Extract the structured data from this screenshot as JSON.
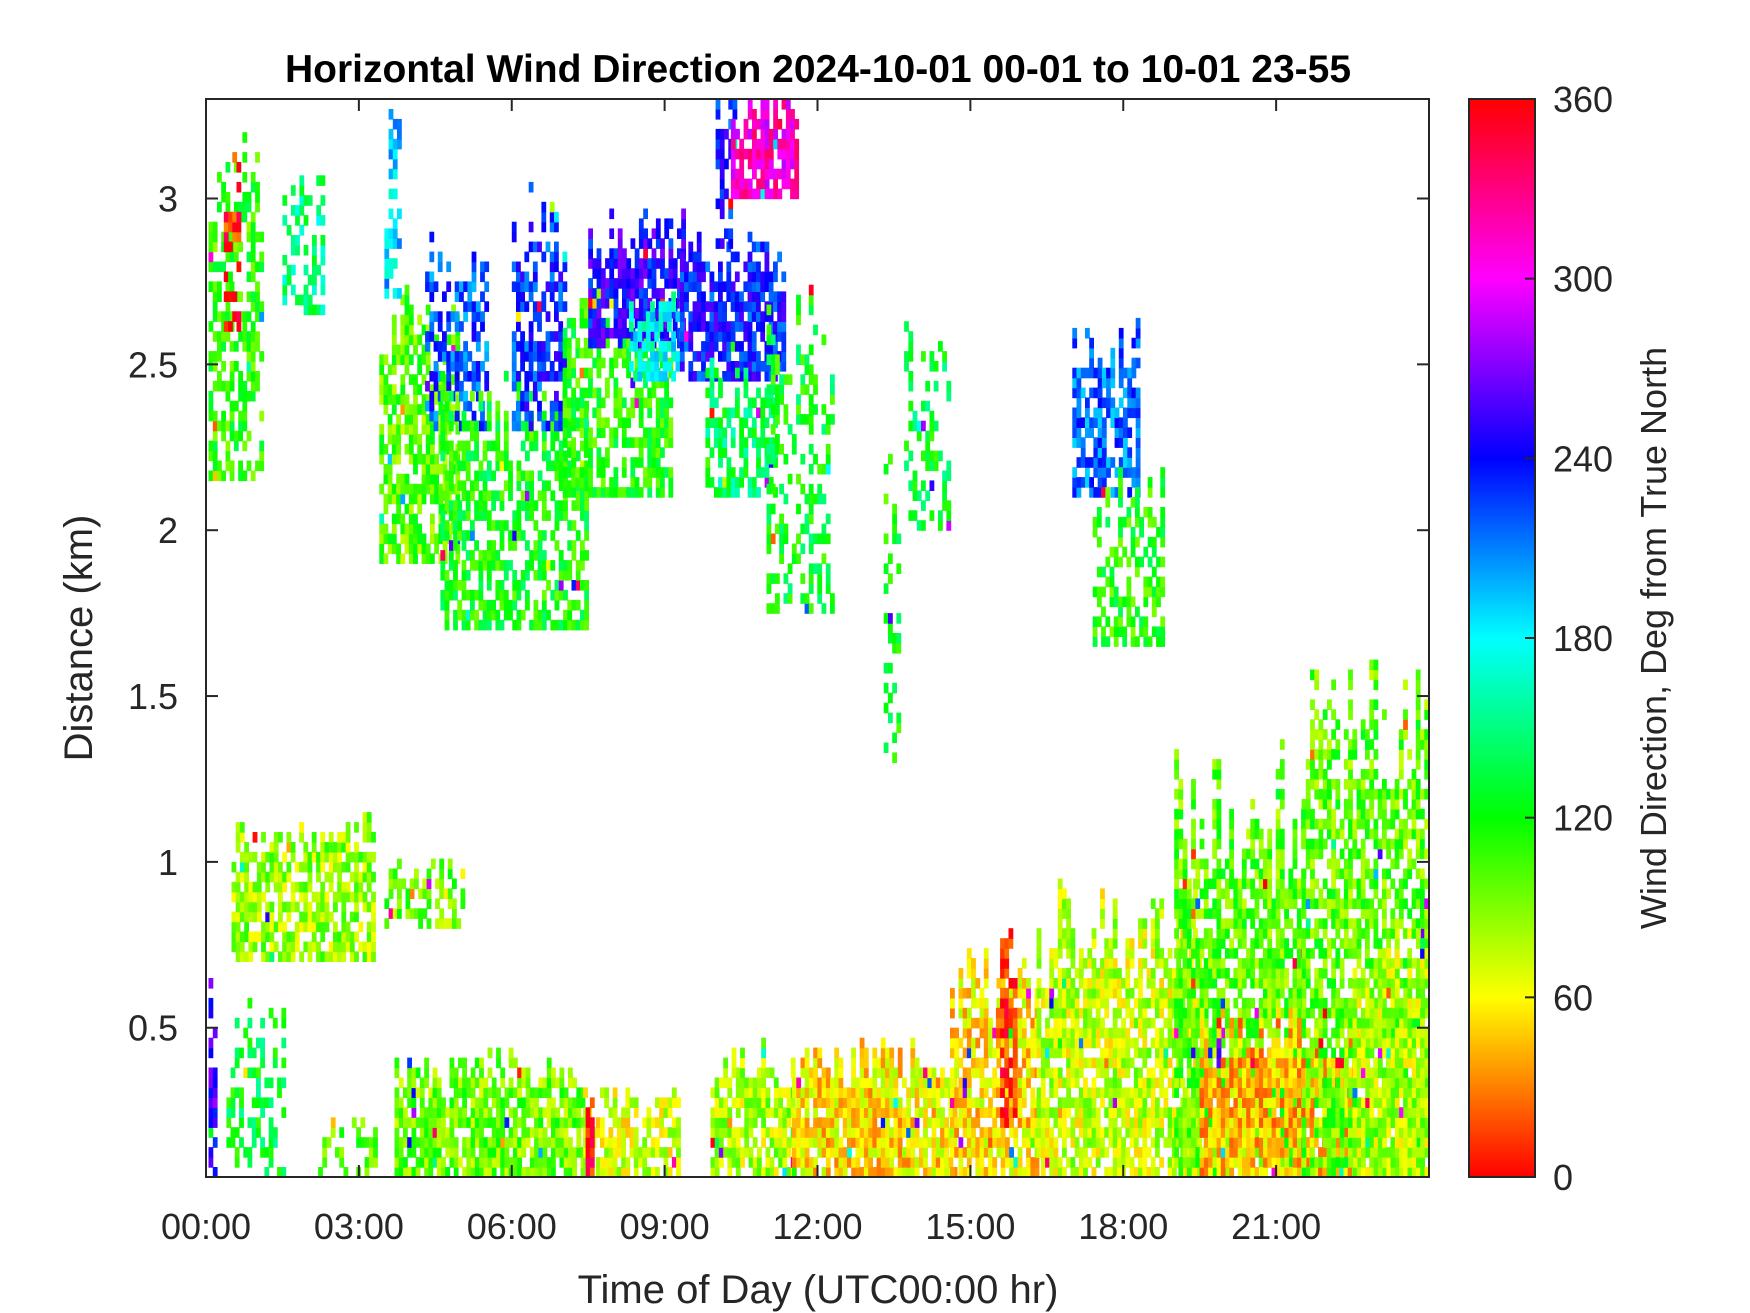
{
  "chart_data": {
    "type": "heatmap",
    "title": "Horizontal Wind Direction 2024-10-01 00-01 to 10-01 23-55",
    "xlabel": "Time of Day (UTC00:00 hr)",
    "ylabel": "Distance (km)",
    "colorbar_label": "Wind Direction, Deg from True North",
    "x_unit": "hours",
    "xlim": [
      0,
      24
    ],
    "ylim": [
      0.05,
      3.3
    ],
    "clim": [
      0,
      360
    ],
    "x_ticks": [
      {
        "value": 0,
        "label": "00:00"
      },
      {
        "value": 3,
        "label": "03:00"
      },
      {
        "value": 6,
        "label": "06:00"
      },
      {
        "value": 9,
        "label": "09:00"
      },
      {
        "value": 12,
        "label": "12:00"
      },
      {
        "value": 15,
        "label": "15:00"
      },
      {
        "value": 18,
        "label": "18:00"
      },
      {
        "value": 21,
        "label": "21:00"
      }
    ],
    "y_ticks": [
      {
        "value": 0.5,
        "label": "0.5"
      },
      {
        "value": 1,
        "label": "1"
      },
      {
        "value": 1.5,
        "label": "1.5"
      },
      {
        "value": 2,
        "label": "2"
      },
      {
        "value": 2.5,
        "label": "2.5"
      },
      {
        "value": 3,
        "label": "3"
      }
    ],
    "colorbar_ticks": [
      {
        "value": 0,
        "label": "0"
      },
      {
        "value": 60,
        "label": "60"
      },
      {
        "value": 120,
        "label": "120"
      },
      {
        "value": 180,
        "label": "180"
      },
      {
        "value": 240,
        "label": "240"
      },
      {
        "value": 300,
        "label": "300"
      },
      {
        "value": 360,
        "label": "360"
      }
    ],
    "colormap": "hsv",
    "colormap_stops": [
      "#ff0000",
      "#ffff00",
      "#00ff00",
      "#00ffff",
      "#0000ff",
      "#ff00ff",
      "#ff0000"
    ],
    "regions": [
      {
        "t0": 0.05,
        "t1": 1.1,
        "z0": 2.15,
        "z1": 3.25,
        "dir": 110,
        "density": 0.55
      },
      {
        "t0": 0.35,
        "t1": 0.65,
        "z0": 2.6,
        "z1": 3.15,
        "dir": 5,
        "density": 0.4
      },
      {
        "t0": 1.5,
        "t1": 2.3,
        "z0": 2.65,
        "z1": 3.1,
        "dir": 150,
        "density": 0.45
      },
      {
        "t0": 3.4,
        "t1": 4.9,
        "z0": 1.9,
        "z1": 2.75,
        "dir": 100,
        "density": 0.65
      },
      {
        "t0": 3.5,
        "t1": 3.8,
        "z0": 2.7,
        "z1": 3.3,
        "dir": 190,
        "density": 0.5
      },
      {
        "t0": 4.3,
        "t1": 5.5,
        "z0": 2.3,
        "z1": 2.9,
        "dir": 220,
        "density": 0.5
      },
      {
        "t0": 4.6,
        "t1": 7.5,
        "z0": 1.7,
        "z1": 2.5,
        "dir": 120,
        "density": 0.6
      },
      {
        "t0": 6.0,
        "t1": 7.0,
        "z0": 2.3,
        "z1": 3.05,
        "dir": 230,
        "density": 0.55
      },
      {
        "t0": 7.0,
        "t1": 9.1,
        "z0": 2.1,
        "z1": 2.7,
        "dir": 115,
        "density": 0.6
      },
      {
        "t0": 7.5,
        "t1": 9.4,
        "z0": 2.55,
        "z1": 2.95,
        "dir": 245,
        "density": 0.8
      },
      {
        "t0": 8.3,
        "t1": 9.3,
        "z0": 2.45,
        "z1": 2.7,
        "dir": 175,
        "density": 0.7
      },
      {
        "t0": 9.3,
        "t1": 11.3,
        "z0": 2.45,
        "z1": 2.9,
        "dir": 235,
        "density": 0.75
      },
      {
        "t0": 9.8,
        "t1": 11.2,
        "z0": 2.1,
        "z1": 2.5,
        "dir": 140,
        "density": 0.6
      },
      {
        "t0": 10.0,
        "t1": 10.4,
        "z0": 2.85,
        "z1": 3.3,
        "dir": 235,
        "density": 0.6
      },
      {
        "t0": 10.3,
        "t1": 11.6,
        "z0": 3.0,
        "z1": 3.3,
        "dir": 310,
        "density": 0.8
      },
      {
        "t0": 11.0,
        "t1": 12.3,
        "z0": 1.75,
        "z1": 2.8,
        "dir": 125,
        "density": 0.35
      },
      {
        "t0": 13.7,
        "t1": 14.6,
        "z0": 2.0,
        "z1": 2.65,
        "dir": 130,
        "density": 0.35
      },
      {
        "t0": 13.3,
        "t1": 13.6,
        "z0": 1.3,
        "z1": 2.4,
        "dir": 120,
        "density": 0.3
      },
      {
        "t0": 17.0,
        "t1": 18.3,
        "z0": 2.1,
        "z1": 2.65,
        "dir": 215,
        "density": 0.7
      },
      {
        "t0": 17.4,
        "t1": 18.8,
        "z0": 1.65,
        "z1": 2.2,
        "dir": 115,
        "density": 0.5
      },
      {
        "t0": 0.05,
        "t1": 0.2,
        "z0": 0.05,
        "z1": 0.65,
        "dir": 250,
        "density": 0.6
      },
      {
        "t0": 0.4,
        "t1": 1.5,
        "z0": 0.05,
        "z1": 0.6,
        "dir": 130,
        "density": 0.35
      },
      {
        "t0": 0.5,
        "t1": 3.3,
        "z0": 0.7,
        "z1": 1.15,
        "dir": 85,
        "density": 0.65
      },
      {
        "t0": 3.5,
        "t1": 5.0,
        "z0": 0.8,
        "z1": 1.0,
        "dir": 95,
        "density": 0.45
      },
      {
        "t0": 2.2,
        "t1": 3.3,
        "z0": 0.05,
        "z1": 0.25,
        "dir": 100,
        "density": 0.35
      },
      {
        "t0": 3.7,
        "t1": 7.4,
        "z0": 0.05,
        "z1": 0.42,
        "dir": 95,
        "density": 0.8
      },
      {
        "t0": 7.4,
        "t1": 9.3,
        "z0": 0.05,
        "z1": 0.32,
        "dir": 70,
        "density": 0.7
      },
      {
        "t0": 7.45,
        "t1": 7.6,
        "z0": 0.05,
        "z1": 0.32,
        "dir": 0,
        "density": 0.9
      },
      {
        "t0": 9.9,
        "t1": 11.5,
        "z0": 0.05,
        "z1": 0.45,
        "dir": 80,
        "density": 0.8
      },
      {
        "t0": 11.5,
        "t1": 14.7,
        "z0": 0.05,
        "z1": 0.45,
        "dir": 55,
        "density": 0.85
      },
      {
        "t0": 14.6,
        "t1": 16.3,
        "z0": 0.05,
        "z1": 0.75,
        "dir": 55,
        "density": 0.7
      },
      {
        "t0": 15.5,
        "t1": 15.9,
        "z0": 0.2,
        "z1": 0.8,
        "dir": 10,
        "density": 0.7
      },
      {
        "t0": 16.3,
        "t1": 19.5,
        "z0": 0.05,
        "z1": 0.95,
        "dir": 75,
        "density": 0.75
      },
      {
        "t0": 19.0,
        "t1": 21.5,
        "z0": 0.05,
        "z1": 1.35,
        "dir": 100,
        "density": 0.75
      },
      {
        "t0": 19.5,
        "t1": 22.5,
        "z0": 0.05,
        "z1": 0.55,
        "dir": 45,
        "density": 0.85
      },
      {
        "t0": 21.5,
        "t1": 24.0,
        "z0": 0.05,
        "z1": 1.65,
        "dir": 100,
        "density": 0.6
      },
      {
        "t0": 22.5,
        "t1": 24.0,
        "z0": 0.05,
        "z1": 0.8,
        "dir": 80,
        "density": 0.85
      }
    ]
  }
}
